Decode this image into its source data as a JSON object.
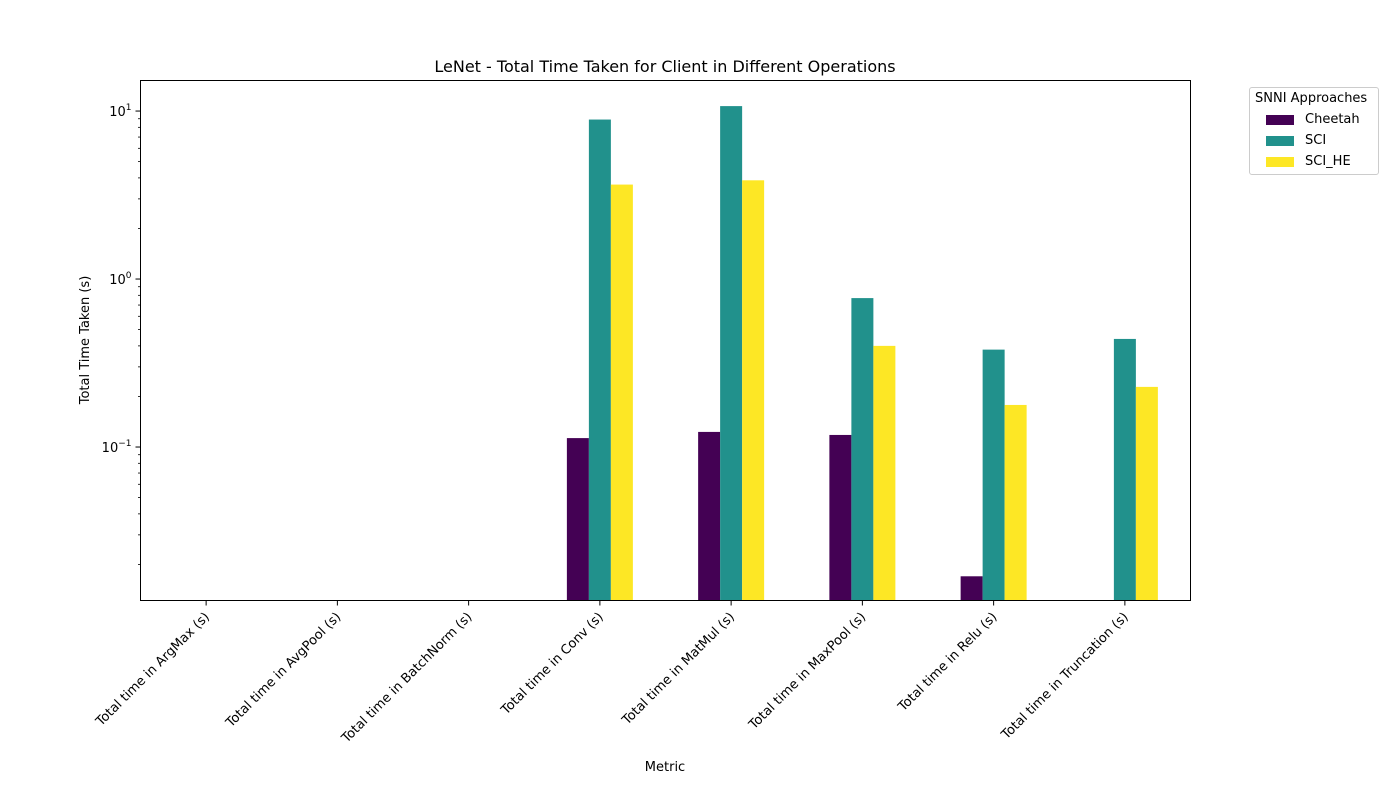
{
  "chart_data": {
    "type": "bar",
    "title": "LeNet - Total Time Taken for Client in Different Operations",
    "xlabel": "Metric",
    "ylabel": "Total Time Taken (s)",
    "yscale": "log",
    "ylim": [
      0.0122,
      15.2
    ],
    "yticks": [
      {
        "value": 0.1,
        "base": "10",
        "exp": "−1"
      },
      {
        "value": 1,
        "base": "10",
        "exp": "0"
      },
      {
        "value": 10,
        "base": "10",
        "exp": "1"
      }
    ],
    "grid": false,
    "legend": {
      "title": "SNNI Approaches",
      "placement": "outside-top-right"
    },
    "categories": [
      "Total time in ArgMax (s)",
      "Total time in AvgPool (s)",
      "Total time in BatchNorm (s)",
      "Total time in Conv (s)",
      "Total time in MatMul (s)",
      "Total time in MaxPool (s)",
      "Total time in Relu (s)",
      "Total time in Truncation (s)"
    ],
    "series": [
      {
        "name": "Cheetah",
        "color": "#440154",
        "values": [
          null,
          null,
          null,
          0.113,
          0.123,
          0.118,
          0.017,
          null
        ]
      },
      {
        "name": "SCI",
        "color": "#21918c",
        "values": [
          null,
          null,
          null,
          8.9,
          10.7,
          0.77,
          0.38,
          0.44
        ]
      },
      {
        "name": "SCI_HE",
        "color": "#fde725",
        "values": [
          null,
          null,
          null,
          3.65,
          3.87,
          0.4,
          0.178,
          0.228
        ]
      }
    ]
  }
}
